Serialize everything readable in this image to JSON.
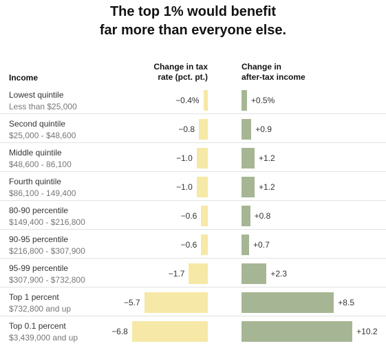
{
  "title": {
    "line1": "The top 1% would benefit",
    "line2": "far more than everyone else."
  },
  "headers": {
    "income": "Income",
    "tax_line1": "Change in tax",
    "tax_line2": "rate (pct. pt.)",
    "income_change_line1": "Change in",
    "income_change_line2": "after-tax income"
  },
  "colors": {
    "tax_bar": "#f6e8a6",
    "income_bar": "#a6b694"
  },
  "chart_data": {
    "type": "bar",
    "title": "The top 1% would benefit far more than everyone else.",
    "categories": [
      "Lowest quintile",
      "Second quintile",
      "Middle quintile",
      "Fourth quintile",
      "80-90 percentile",
      "90-95 percentile",
      "95-99 percentile",
      "Top 1 percent",
      "Top 0.1 percent"
    ],
    "ranges": [
      "Less than $25,000",
      "$25,000 - $48,600",
      "$48,600 - 86,100",
      "$86,100 - 149,400",
      "$149,400 - $216,800",
      "$216,800 - $307,900",
      "$307,900 - $732,800",
      "$732,800 and up",
      "$3,439,000 and up"
    ],
    "series": [
      {
        "name": "Change in tax rate (pct. pt.)",
        "values": [
          -0.4,
          -0.8,
          -1.0,
          -1.0,
          -0.6,
          -0.6,
          -1.7,
          -5.7,
          -6.8
        ],
        "labels": [
          "−0.4%",
          "−0.8",
          "−1.0",
          "−1.0",
          "−0.6",
          "−0.6",
          "−1.7",
          "−5.7",
          "−6.8"
        ]
      },
      {
        "name": "Change in after-tax income",
        "values": [
          0.5,
          0.9,
          1.2,
          1.2,
          0.8,
          0.7,
          2.3,
          8.5,
          10.2
        ],
        "labels": [
          "+0.5%",
          "+0.9",
          "+1.2",
          "+1.2",
          "+0.8",
          "+0.7",
          "+2.3",
          "+8.5",
          "+10.2"
        ]
      }
    ]
  }
}
